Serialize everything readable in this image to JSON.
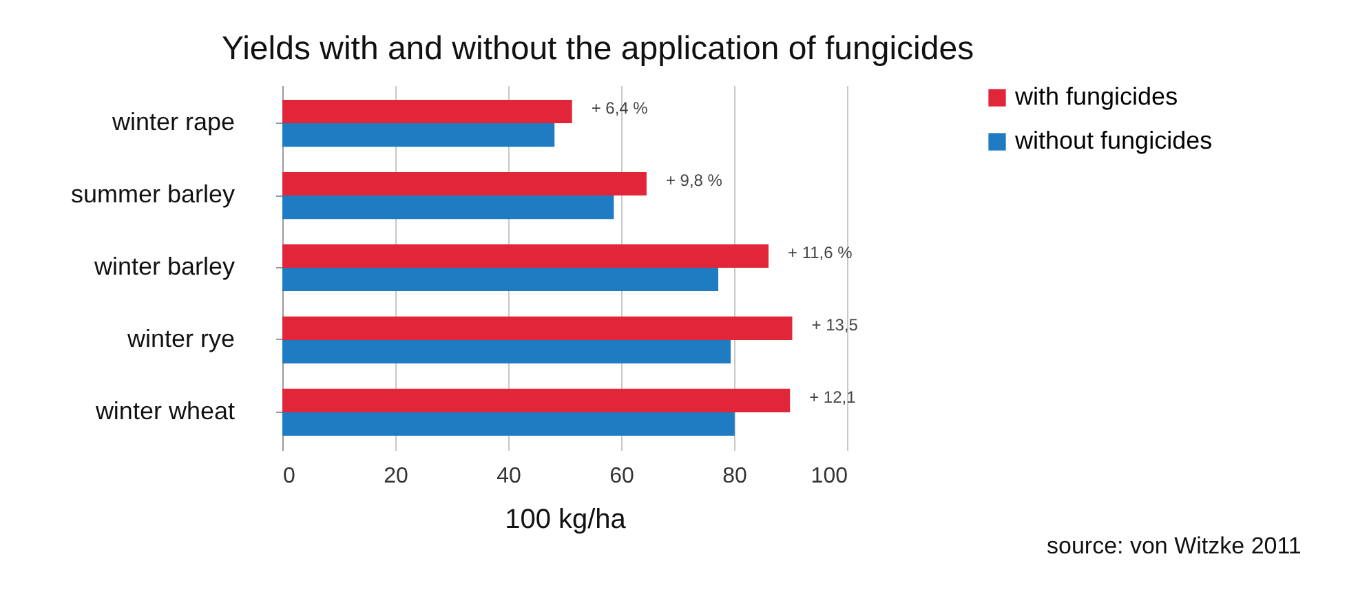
{
  "chart_data": {
    "type": "bar",
    "orientation": "horizontal",
    "title": "Yields with and without the application of fungicides",
    "xlabel": "100 kg/ha",
    "categories": [
      "winter rape",
      "summer barley",
      "winter barley",
      "winter rye",
      "winter wheat"
    ],
    "series": [
      {
        "name": "with fungicides",
        "color": "#e2263a",
        "values": [
          51.3,
          64.5,
          86.1,
          90.3,
          89.9
        ]
      },
      {
        "name": "without fungicides",
        "color": "#1f7bc2",
        "values": [
          48.2,
          58.7,
          77.2,
          79.4,
          80.1
        ]
      }
    ],
    "xlim": [
      0,
      100
    ],
    "xticks": [
      0,
      20,
      40,
      60,
      80,
      100
    ],
    "grid": "x",
    "legend": "right",
    "annotations": [
      {
        "text": "+ 6,4 %",
        "x": 51.3,
        "y": "winter rape"
      },
      {
        "text": "+ 9,8 %",
        "x": 64.5,
        "y": "summer barley"
      },
      {
        "text": "+ 11,6 %",
        "x": 86.1,
        "y": "winter barley"
      },
      {
        "text": "+ 13,5",
        "x": 90.3,
        "y": "winter rye"
      },
      {
        "text": "+ 12,1",
        "x": 89.9,
        "y": "winter wheat"
      },
      "source: von Witzke 2011"
    ]
  }
}
